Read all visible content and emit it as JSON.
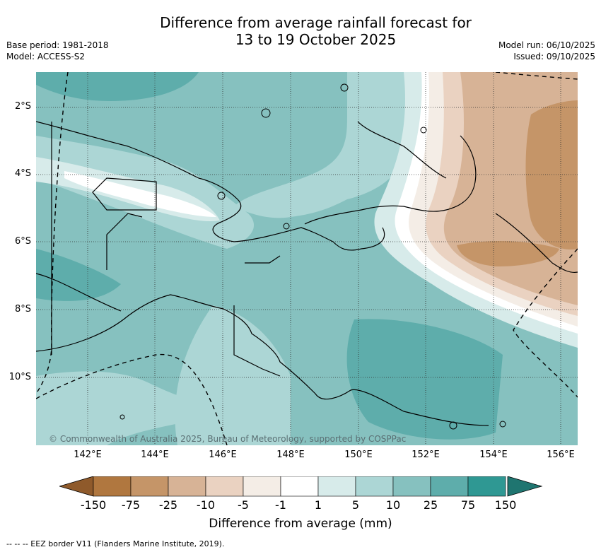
{
  "title": {
    "line1": "Difference from average rainfall forecast for",
    "line2": "13 to 19 October 2025"
  },
  "meta_left": {
    "base_period": "Base period: 1981-2018",
    "model": "Model: ACCESS-S2"
  },
  "meta_right": {
    "model_run": "Model run: 06/10/2025",
    "issued": "Issued: 09/10/2025"
  },
  "copyright": "© Commonwealth of Australia 2025, Bureau of Meteorology, supported by COSPPac",
  "lat_labels": [
    "2°S",
    "4°S",
    "6°S",
    "8°S",
    "10°S"
  ],
  "lon_labels": [
    "142°E",
    "144°E",
    "146°E",
    "148°E",
    "150°E",
    "152°E",
    "154°E",
    "156°E"
  ],
  "colorbar": {
    "ticks": [
      "-150",
      "-75",
      "-25",
      "-10",
      "-5",
      "-1",
      "1",
      "5",
      "10",
      "25",
      "75",
      "150"
    ],
    "colors": [
      "#b0773f",
      "#c59568",
      "#d7b396",
      "#ead2c1",
      "#f4ede6",
      "#ffffff",
      "#d7ebea",
      "#acd6d5",
      "#86c1bf",
      "#5eadab",
      "#2f9893"
    ],
    "under_color": "#8f5a2b",
    "over_color": "#1f7570",
    "title": "Difference from average (mm)"
  },
  "legend": "--  --  -- EEZ border V11 (Flanders Marine Institute, 2019)."
}
